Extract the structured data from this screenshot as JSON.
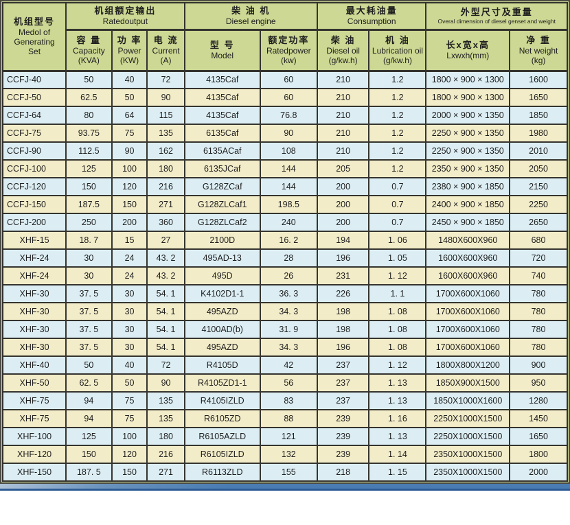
{
  "colors": {
    "header_bg": "#ccd893",
    "row_blue": "#dceef4",
    "row_cream": "#f2ecc8",
    "border": "#35342f",
    "bottom_bar_blue": "#4a7cb2"
  },
  "table": {
    "group_headers": {
      "model": {
        "zh": "机组型号",
        "en": "Medol of\nGenerating\nSet"
      },
      "rated_output": {
        "zh": "机组额定输出",
        "en": "Ratedoutput"
      },
      "diesel_engine": {
        "zh": "柴 油 机",
        "en": "Diesel engine"
      },
      "consumption": {
        "zh": "最大耗油量",
        "en": "Consumption"
      },
      "dimension": {
        "zh": "外型尺寸及重量",
        "en": "Overal dimension of diesel genset and weight"
      }
    },
    "sub_headers": [
      {
        "zh": "容 量",
        "en": "Capacity",
        "unit": "(KVA)"
      },
      {
        "zh": "功 率",
        "en": "Power",
        "unit": "(KW)"
      },
      {
        "zh": "电 流",
        "en": "Current",
        "unit": "(A)"
      },
      {
        "zh": "型 号",
        "en": "Model",
        "unit": ""
      },
      {
        "zh": "额定功率",
        "en": "Ratedpower",
        "unit": "(kw)"
      },
      {
        "zh": "柴 油",
        "en": "Diesel oil",
        "unit": "(g/kw.h)"
      },
      {
        "zh": "机 油",
        "en": "Lubrication oil",
        "unit": "(g/kw.h)"
      },
      {
        "zh": "长x宽x高",
        "en": "Lxwxh(mm)",
        "unit": ""
      },
      {
        "zh": "净 重",
        "en": "Net weight",
        "unit": "(kg)"
      }
    ],
    "rows": [
      {
        "model": "CCFJ-40",
        "capacity": "50",
        "power": "40",
        "current": "72",
        "engine_model": "4135Caf",
        "rated_power": "60",
        "diesel_oil": "210",
        "lub_oil": "1.2",
        "dimensions": "1800 × 900 × 1300",
        "net_weight": "1600"
      },
      {
        "model": "CCFJ-50",
        "capacity": "62.5",
        "power": "50",
        "current": "90",
        "engine_model": "4135Caf",
        "rated_power": "60",
        "diesel_oil": "210",
        "lub_oil": "1.2",
        "dimensions": "1800 × 900 × 1300",
        "net_weight": "1650"
      },
      {
        "model": "CCFJ-64",
        "capacity": "80",
        "power": "64",
        "current": "115",
        "engine_model": "4135Caf",
        "rated_power": "76.8",
        "diesel_oil": "210",
        "lub_oil": "1.2",
        "dimensions": "2000 × 900 × 1350",
        "net_weight": "1850"
      },
      {
        "model": "CCFJ-75",
        "capacity": "93.75",
        "power": "75",
        "current": "135",
        "engine_model": "6135Caf",
        "rated_power": "90",
        "diesel_oil": "210",
        "lub_oil": "1.2",
        "dimensions": "2250 × 900 × 1350",
        "net_weight": "1980"
      },
      {
        "model": "CCFJ-90",
        "capacity": "112.5",
        "power": "90",
        "current": "162",
        "engine_model": "6135ACaf",
        "rated_power": "108",
        "diesel_oil": "210",
        "lub_oil": "1.2",
        "dimensions": "2250 × 900 × 1350",
        "net_weight": "2010"
      },
      {
        "model": "CCFJ-100",
        "capacity": "125",
        "power": "100",
        "current": "180",
        "engine_model": "6135JCaf",
        "rated_power": "144",
        "diesel_oil": "205",
        "lub_oil": "1.2",
        "dimensions": "2350 × 900 × 1350",
        "net_weight": "2050"
      },
      {
        "model": "CCFJ-120",
        "capacity": "150",
        "power": "120",
        "current": "216",
        "engine_model": "G128ZCaf",
        "rated_power": "144",
        "diesel_oil": "200",
        "lub_oil": "0.7",
        "dimensions": "2380 × 900 × 1850",
        "net_weight": "2150"
      },
      {
        "model": "CCFJ-150",
        "capacity": "187.5",
        "power": "150",
        "current": "271",
        "engine_model": "G128ZLCaf1",
        "rated_power": "198.5",
        "diesel_oil": "200",
        "lub_oil": "0.7",
        "dimensions": "2400 × 900 × 1850",
        "net_weight": "2250"
      },
      {
        "model": "CCFJ-200",
        "capacity": "250",
        "power": "200",
        "current": "360",
        "engine_model": "G128ZLCaf2",
        "rated_power": "240",
        "diesel_oil": "200",
        "lub_oil": "0.7",
        "dimensions": "2450 × 900 × 1850",
        "net_weight": "2650"
      },
      {
        "model": "XHF-15",
        "capacity": "18. 7",
        "power": "15",
        "current": "27",
        "engine_model": "2100D",
        "rated_power": "16. 2",
        "diesel_oil": "194",
        "lub_oil": "1. 06",
        "dimensions": "1480X600X960",
        "net_weight": "680"
      },
      {
        "model": "XHF-24",
        "capacity": "30",
        "power": "24",
        "current": "43. 2",
        "engine_model": "495AD-13",
        "rated_power": "28",
        "diesel_oil": "196",
        "lub_oil": "1. 05",
        "dimensions": "1600X600X960",
        "net_weight": "720"
      },
      {
        "model": "XHF-24",
        "capacity": "30",
        "power": "24",
        "current": "43. 2",
        "engine_model": "495D",
        "rated_power": "26",
        "diesel_oil": "231",
        "lub_oil": "1. 12",
        "dimensions": "1600X600X960",
        "net_weight": "740"
      },
      {
        "model": "XHF-30",
        "capacity": "37. 5",
        "power": "30",
        "current": "54. 1",
        "engine_model": "K4102D1-1",
        "rated_power": "36. 3",
        "diesel_oil": "226",
        "lub_oil": "1. 1",
        "dimensions": "1700X600X1060",
        "net_weight": "780"
      },
      {
        "model": "XHF-30",
        "capacity": "37. 5",
        "power": "30",
        "current": "54. 1",
        "engine_model": "495AZD",
        "rated_power": "34. 3",
        "diesel_oil": "198",
        "lub_oil": "1. 08",
        "dimensions": "1700X600X1060",
        "net_weight": "780"
      },
      {
        "model": "XHF-30",
        "capacity": "37. 5",
        "power": "30",
        "current": "54. 1",
        "engine_model": "4100AD(b)",
        "rated_power": "31. 9",
        "diesel_oil": "198",
        "lub_oil": "1. 08",
        "dimensions": "1700X600X1060",
        "net_weight": "780"
      },
      {
        "model": "XHF-30",
        "capacity": "37. 5",
        "power": "30",
        "current": "54. 1",
        "engine_model": "495AZD",
        "rated_power": "34. 3",
        "diesel_oil": "196",
        "lub_oil": "1. 08",
        "dimensions": "1700X600X1060",
        "net_weight": "780"
      },
      {
        "model": "XHF-40",
        "capacity": "50",
        "power": "40",
        "current": "72",
        "engine_model": "R4105D",
        "rated_power": "42",
        "diesel_oil": "237",
        "lub_oil": "1. 12",
        "dimensions": "1800X800X1200",
        "net_weight": "900"
      },
      {
        "model": "XHF-50",
        "capacity": "62. 5",
        "power": "50",
        "current": "90",
        "engine_model": "R4105ZD1-1",
        "rated_power": "56",
        "diesel_oil": "237",
        "lub_oil": "1. 13",
        "dimensions": "1850X900X1500",
        "net_weight": "950"
      },
      {
        "model": "XHF-75",
        "capacity": "94",
        "power": "75",
        "current": "135",
        "engine_model": "R4105IZLD",
        "rated_power": "83",
        "diesel_oil": "237",
        "lub_oil": "1. 13",
        "dimensions": "1850X1000X1600",
        "net_weight": "1280"
      },
      {
        "model": "XHF-75",
        "capacity": "94",
        "power": "75",
        "current": "135",
        "engine_model": "R6105ZD",
        "rated_power": "88",
        "diesel_oil": "239",
        "lub_oil": "1. 16",
        "dimensions": "2250X1000X1500",
        "net_weight": "1450"
      },
      {
        "model": "XHF-100",
        "capacity": "125",
        "power": "100",
        "current": "180",
        "engine_model": "R6105AZLD",
        "rated_power": "121",
        "diesel_oil": "239",
        "lub_oil": "1. 13",
        "dimensions": "2250X1000X1500",
        "net_weight": "1650"
      },
      {
        "model": "XHF-120",
        "capacity": "150",
        "power": "120",
        "current": "216",
        "engine_model": "R6105IZLD",
        "rated_power": "132",
        "diesel_oil": "239",
        "lub_oil": "1. 14",
        "dimensions": "2350X1000X1500",
        "net_weight": "1800"
      },
      {
        "model": "XHF-150",
        "capacity": "187. 5",
        "power": "150",
        "current": "271",
        "engine_model": "R6113ZLD",
        "rated_power": "155",
        "diesel_oil": "218",
        "lub_oil": "1. 15",
        "dimensions": "2350X1000X1500",
        "net_weight": "2000"
      }
    ]
  }
}
